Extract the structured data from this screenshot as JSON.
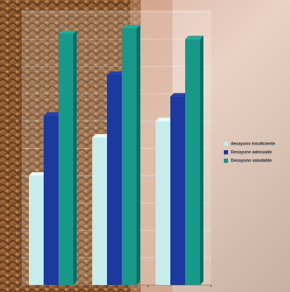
{
  "chart_data": {
    "type": "bar",
    "categories": [
      null,
      null,
      null
    ],
    "series": [
      {
        "name": "desayuno insuficiente",
        "color": "#c6ecec",
        "values": [
          20,
          27,
          30
        ]
      },
      {
        "name": "Desayuno adecuado",
        "color": "#1c3a9e",
        "values": [
          31,
          38.5,
          34.5
        ]
      },
      {
        "name": "Desayuno saludable",
        "color": "#17998a",
        "values": [
          46,
          47,
          45
        ]
      }
    ],
    "ylim": [
      0,
      50
    ],
    "yticks": [
      0,
      5,
      10,
      15,
      20,
      25,
      30,
      35,
      40,
      45,
      50
    ],
    "grid": true,
    "legend": "right"
  }
}
